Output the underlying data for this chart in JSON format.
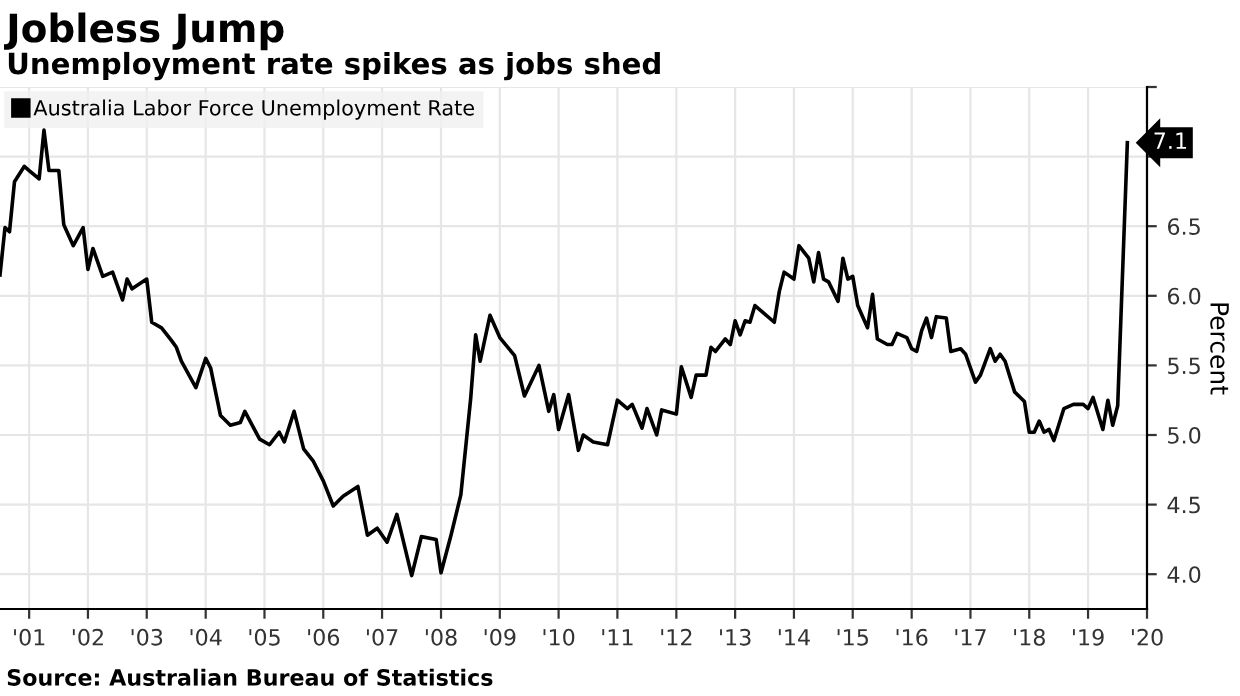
{
  "chart_data": {
    "type": "line",
    "title": "Jobless Jump",
    "subtitle": "Unemployment rate spikes as jobs shed",
    "ylabel": "Percent",
    "annotations": [
      {
        "text": "7.1",
        "x": "2020-03",
        "y": 7.1
      },
      "Source: Australian Bureau of Statistics"
    ],
    "x": [
      "2001-01",
      "2001-02",
      "2001-03",
      "2001-04",
      "2001-06",
      "2001-07",
      "2001-09",
      "2001-10",
      "2001-11",
      "2002-01",
      "2002-02",
      "2002-04",
      "2002-06",
      "2002-07",
      "2002-08",
      "2002-10",
      "2002-12",
      "2003-02",
      "2003-03",
      "2003-04",
      "2003-07",
      "2003-08",
      "2003-10",
      "2003-12",
      "2004-01",
      "2004-02",
      "2004-05",
      "2004-07",
      "2004-08",
      "2004-10",
      "2004-12",
      "2005-02",
      "2005-03",
      "2005-06",
      "2005-08",
      "2005-10",
      "2005-11",
      "2006-01",
      "2006-03",
      "2006-05",
      "2006-07",
      "2006-09",
      "2006-11",
      "2007-02",
      "2007-04",
      "2007-06",
      "2007-08",
      "2007-10",
      "2008-01",
      "2008-03",
      "2008-06",
      "2008-07",
      "2008-09",
      "2008-11",
      "2009-01",
      "2009-02",
      "2009-03",
      "2009-05",
      "2009-07",
      "2009-10",
      "2009-12",
      "2010-03",
      "2010-05",
      "2010-06",
      "2010-07",
      "2010-09",
      "2010-11",
      "2010-12",
      "2011-02",
      "2011-05",
      "2011-07",
      "2011-09",
      "2011-10",
      "2011-12",
      "2012-01",
      "2012-03",
      "2012-04",
      "2012-07",
      "2012-08",
      "2012-10",
      "2012-11",
      "2013-01",
      "2013-02",
      "2013-03",
      "2013-05",
      "2013-06",
      "2013-07",
      "2013-08",
      "2013-09",
      "2013-10",
      "2013-11",
      "2014-03",
      "2014-04",
      "2014-05",
      "2014-07",
      "2014-08",
      "2014-10",
      "2014-11",
      "2014-12",
      "2015-01",
      "2015-02",
      "2015-04",
      "2015-05",
      "2015-06",
      "2015-07",
      "2015-08",
      "2015-10",
      "2015-11",
      "2015-12",
      "2016-02",
      "2016-03",
      "2016-04",
      "2016-06",
      "2016-07",
      "2016-08",
      "2016-09",
      "2016-10",
      "2016-11",
      "2016-12",
      "2017-02",
      "2017-03",
      "2017-05",
      "2017-06",
      "2017-08",
      "2017-09",
      "2017-11",
      "2017-12",
      "2018-01",
      "2018-02",
      "2018-04",
      "2018-06",
      "2018-07",
      "2018-08",
      "2018-09",
      "2018-10",
      "2018-11",
      "2018-12",
      "2019-02",
      "2019-04",
      "2019-06",
      "2019-07",
      "2019-08",
      "2019-10",
      "2019-11",
      "2019-12",
      "2020-01",
      "2020-03"
    ],
    "series": [
      {
        "name": "Australia Labor Force Unemployment Rate",
        "color": "#000000",
        "values": [
          6.15,
          6.49,
          6.46,
          6.82,
          6.93,
          6.9,
          6.84,
          7.19,
          6.9,
          6.9,
          6.51,
          6.36,
          6.49,
          6.19,
          6.34,
          6.14,
          6.17,
          5.97,
          6.12,
          6.05,
          6.12,
          5.81,
          5.77,
          5.68,
          5.63,
          5.53,
          5.34,
          5.55,
          5.48,
          5.14,
          5.07,
          5.09,
          5.17,
          4.97,
          4.93,
          5.02,
          4.95,
          5.17,
          4.9,
          4.81,
          4.67,
          4.49,
          4.56,
          4.63,
          4.28,
          4.33,
          4.23,
          4.43,
          3.99,
          4.27,
          4.25,
          4.01,
          4.28,
          4.57,
          5.26,
          5.72,
          5.53,
          5.86,
          5.7,
          5.57,
          5.28,
          5.5,
          5.17,
          5.29,
          5.04,
          5.29,
          4.89,
          5.0,
          4.95,
          4.93,
          5.25,
          5.19,
          5.22,
          5.05,
          5.19,
          5.0,
          5.18,
          5.15,
          5.49,
          5.27,
          5.43,
          5.43,
          5.63,
          5.6,
          5.69,
          5.65,
          5.82,
          5.72,
          5.82,
          5.81,
          5.93,
          5.81,
          6.03,
          6.17,
          6.12,
          6.36,
          6.27,
          6.1,
          6.31,
          6.12,
          6.1,
          5.96,
          6.27,
          6.12,
          6.14,
          5.93,
          5.77,
          6.01,
          5.69,
          5.65,
          5.65,
          5.73,
          5.7,
          5.62,
          5.6,
          5.75,
          5.84,
          5.7,
          5.85,
          5.84,
          5.6,
          5.62,
          5.58,
          5.38,
          5.43,
          5.62,
          5.53,
          5.58,
          5.53,
          5.31,
          5.24,
          5.02,
          5.02,
          5.1,
          5.02,
          5.04,
          4.96,
          5.19,
          5.22,
          5.22,
          5.19,
          5.27,
          5.04,
          5.25,
          5.07,
          5.21,
          7.1
        ]
      }
    ],
    "xlim": [
      "2001-01-01",
      "2020-07-01"
    ],
    "xticks": [
      {
        "value": "2001-07-01",
        "label": "'01"
      },
      {
        "value": "2002-07-01",
        "label": "'02"
      },
      {
        "value": "2003-07-01",
        "label": "'03"
      },
      {
        "value": "2004-07-01",
        "label": "'04"
      },
      {
        "value": "2005-07-01",
        "label": "'05"
      },
      {
        "value": "2006-07-01",
        "label": "'06"
      },
      {
        "value": "2007-07-01",
        "label": "'07"
      },
      {
        "value": "2008-07-01",
        "label": "'08"
      },
      {
        "value": "2009-07-01",
        "label": "'09"
      },
      {
        "value": "2010-07-01",
        "label": "'10"
      },
      {
        "value": "2011-07-01",
        "label": "'11"
      },
      {
        "value": "2012-07-01",
        "label": "'12"
      },
      {
        "value": "2013-07-01",
        "label": "'13"
      },
      {
        "value": "2014-07-01",
        "label": "'14"
      },
      {
        "value": "2015-07-01",
        "label": "'15"
      },
      {
        "value": "2016-07-01",
        "label": "'16"
      },
      {
        "value": "2017-07-01",
        "label": "'17"
      },
      {
        "value": "2018-07-01",
        "label": "'18"
      },
      {
        "value": "2019-07-01",
        "label": "'19"
      },
      {
        "value": "2020-07-01",
        "label": "'20"
      }
    ],
    "ylim": [
      3.75,
      7.5
    ],
    "yticks": [
      {
        "value": 4,
        "label": "4.0"
      },
      {
        "value": 4.5,
        "label": "4.5"
      },
      {
        "value": 5,
        "label": "5.0"
      },
      {
        "value": 5.5,
        "label": "5.5"
      },
      {
        "value": 6,
        "label": "6.0"
      },
      {
        "value": 6.5,
        "label": "6.5"
      },
      {
        "value": 7,
        "label": null
      },
      {
        "value": 7.5,
        "label": null
      }
    ],
    "grid": true,
    "legend": "top left",
    "marker": "none",
    "line_style": "solid"
  }
}
